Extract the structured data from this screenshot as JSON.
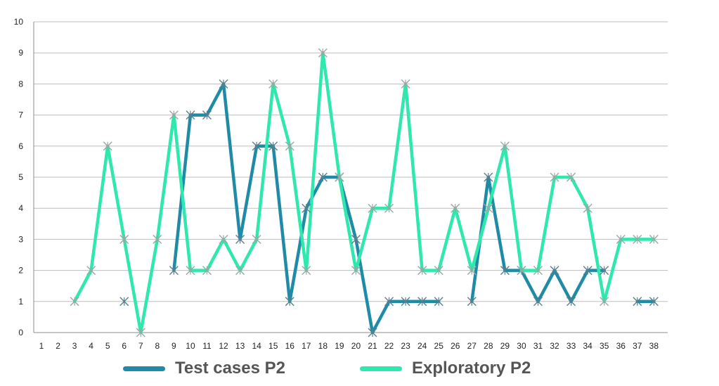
{
  "chart_data": {
    "type": "line",
    "title": "",
    "xlabel": "",
    "ylabel": "",
    "x": [
      1,
      2,
      3,
      4,
      5,
      6,
      7,
      8,
      9,
      10,
      11,
      12,
      13,
      14,
      15,
      16,
      17,
      18,
      19,
      20,
      21,
      22,
      23,
      24,
      25,
      26,
      27,
      28,
      29,
      30,
      31,
      32,
      33,
      34,
      35,
      36,
      37,
      38
    ],
    "xticks": [
      "1",
      "2",
      "3",
      "4",
      "5",
      "6",
      "7",
      "8",
      "9",
      "10",
      "11",
      "12",
      "13",
      "14",
      "15",
      "16",
      "17",
      "18",
      "19",
      "20",
      "21",
      "22",
      "23",
      "24",
      "25",
      "26",
      "27",
      "28",
      "29",
      "30",
      "31",
      "32",
      "33",
      "34",
      "35",
      "36",
      "37",
      "38"
    ],
    "yticks": [
      "0",
      "1",
      "2",
      "3",
      "4",
      "5",
      "6",
      "7",
      "8",
      "9",
      "10"
    ],
    "ylim": [
      0,
      10
    ],
    "grid": true,
    "legend_position": "bottom",
    "series": [
      {
        "name": "Test cases P2",
        "color": "#1f8ba6",
        "values": [
          null,
          null,
          null,
          null,
          null,
          1,
          null,
          null,
          2,
          7,
          7,
          8,
          3,
          6,
          6,
          1,
          4,
          5,
          5,
          3,
          0,
          1,
          1,
          1,
          1,
          null,
          1,
          5,
          2,
          2,
          1,
          2,
          1,
          2,
          2,
          null,
          1,
          1
        ]
      },
      {
        "name": "Exploratory P2",
        "color": "#2ee8ad",
        "values": [
          null,
          null,
          1,
          2,
          6,
          3,
          0,
          3,
          7,
          2,
          2,
          3,
          2,
          3,
          8,
          6,
          2,
          9,
          5,
          2,
          4,
          4,
          8,
          2,
          2,
          4,
          2,
          4,
          6,
          2,
          2,
          5,
          5,
          4,
          1,
          3,
          3,
          3
        ]
      }
    ],
    "marker": "asterisk"
  }
}
